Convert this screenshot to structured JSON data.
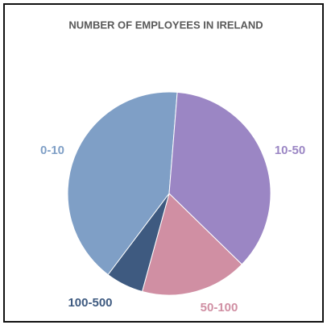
{
  "chart_data": {
    "type": "pie",
    "title": "NUMBER OF EMPLOYEES IN IRELAND",
    "categories": [
      "0-10",
      "10-50",
      "50-100",
      "100-500"
    ],
    "values": [
      41,
      36,
      17,
      6
    ],
    "colors": [
      "#7f9fc6",
      "#9b86c4",
      "#d08fa3",
      "#3e5a80"
    ]
  }
}
